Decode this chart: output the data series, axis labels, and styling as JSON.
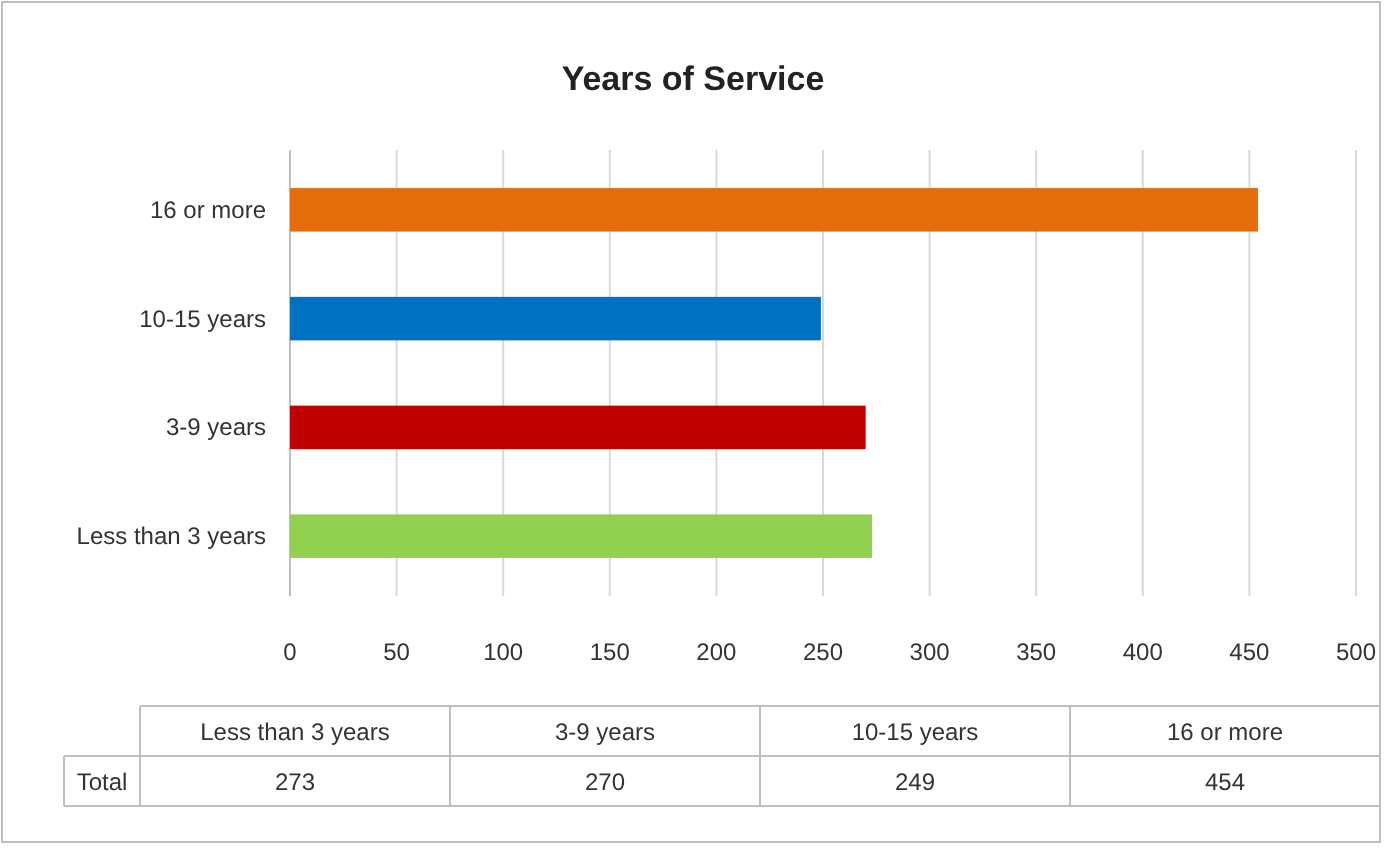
{
  "chart_data": [
    {
      "type": "bar",
      "title": "Years of Service",
      "orientation": "horizontal",
      "categories": [
        "16 or more",
        "10-15 years",
        "3-9 years",
        "Less than 3 years"
      ],
      "series": [
        {
          "colors": [
            "#e46c0a",
            "#0070c0",
            "#c00000",
            "#92d050"
          ],
          "values": [
            454,
            249,
            270,
            273
          ]
        }
      ],
      "xlim": [
        0,
        500
      ],
      "xticks": [
        0,
        50,
        100,
        150,
        200,
        250,
        300,
        350,
        400,
        450,
        500
      ],
      "grid": "x"
    },
    {
      "type": "other",
      "categories": [
        "Less than 3 years",
        "3-9 years",
        "10-15 years",
        "16 or more"
      ],
      "series": [
        {
          "name": "Total",
          "values": [
            273,
            270,
            249,
            454
          ]
        }
      ],
      "data_labels": true
    }
  ]
}
